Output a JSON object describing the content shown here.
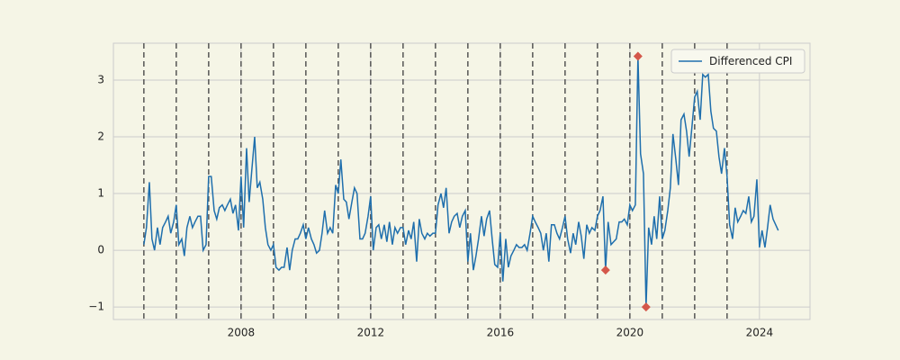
{
  "chart_data": {
    "type": "line",
    "xlim": [
      2004.06,
      2025.56
    ],
    "ylim": [
      -1.22,
      3.65
    ],
    "xticks": [
      2008,
      2012,
      2016,
      2020,
      2024
    ],
    "yticks": [
      {
        "value": -1,
        "label": "−1"
      },
      0,
      1,
      2,
      3
    ],
    "grid": true,
    "legend": "upper right",
    "vlines": [
      2005,
      2006,
      2007,
      2008,
      2009,
      2010,
      2011,
      2012,
      2013,
      2014,
      2015,
      2016,
      2017,
      2018,
      2019,
      2020,
      2021,
      2022,
      2023
    ],
    "series": [
      {
        "name": "Differenced CPI",
        "color": "#1f6fad",
        "x": [
          2005,
          2005.08,
          2005.17,
          2005.25,
          2005.33,
          2005.42,
          2005.5,
          2005.58,
          2005.67,
          2005.75,
          2005.83,
          2005.92,
          2006,
          2006.08,
          2006.17,
          2006.25,
          2006.33,
          2006.42,
          2006.5,
          2006.58,
          2006.67,
          2006.75,
          2006.83,
          2006.92,
          2007,
          2007.08,
          2007.17,
          2007.25,
          2007.33,
          2007.42,
          2007.5,
          2007.58,
          2007.67,
          2007.75,
          2007.83,
          2007.92,
          2008,
          2008.08,
          2008.17,
          2008.25,
          2008.33,
          2008.42,
          2008.5,
          2008.58,
          2008.67,
          2008.75,
          2008.83,
          2008.92,
          2009,
          2009.08,
          2009.17,
          2009.25,
          2009.33,
          2009.42,
          2009.5,
          2009.58,
          2009.67,
          2009.75,
          2009.83,
          2009.92,
          2010,
          2010.08,
          2010.17,
          2010.25,
          2010.33,
          2010.42,
          2010.5,
          2010.58,
          2010.67,
          2010.75,
          2010.83,
          2010.92,
          2011,
          2011.08,
          2011.17,
          2011.25,
          2011.33,
          2011.42,
          2011.5,
          2011.58,
          2011.67,
          2011.75,
          2011.83,
          2011.92,
          2012,
          2012.08,
          2012.17,
          2012.25,
          2012.33,
          2012.42,
          2012.5,
          2012.58,
          2012.67,
          2012.75,
          2012.83,
          2012.92,
          2013,
          2013.08,
          2013.17,
          2013.25,
          2013.33,
          2013.42,
          2013.5,
          2013.58,
          2013.67,
          2013.75,
          2013.83,
          2013.92,
          2014,
          2014.08,
          2014.17,
          2014.25,
          2014.33,
          2014.42,
          2014.5,
          2014.58,
          2014.67,
          2014.75,
          2014.83,
          2014.92,
          2015,
          2015.08,
          2015.17,
          2015.25,
          2015.33,
          2015.42,
          2015.5,
          2015.58,
          2015.67,
          2015.75,
          2015.83,
          2015.92,
          2016,
          2016.08,
          2016.17,
          2016.25,
          2016.33,
          2016.42,
          2016.5,
          2016.58,
          2016.67,
          2016.75,
          2016.83,
          2016.92,
          2017,
          2017.08,
          2017.17,
          2017.25,
          2017.33,
          2017.42,
          2017.5,
          2017.58,
          2017.67,
          2017.75,
          2017.83,
          2017.92,
          2018,
          2018.08,
          2018.17,
          2018.25,
          2018.33,
          2018.42,
          2018.5,
          2018.58,
          2018.67,
          2018.75,
          2018.83,
          2018.92,
          2019,
          2019.08,
          2019.17,
          2019.25,
          2019.33,
          2019.42,
          2019.5,
          2019.58,
          2019.67,
          2019.75,
          2019.83,
          2019.92,
          2020,
          2020.08,
          2020.17,
          2020.25,
          2020.33,
          2020.42,
          2020.5,
          2020.58,
          2020.67,
          2020.75,
          2020.83,
          2020.92,
          2021,
          2021.08,
          2021.17,
          2021.25,
          2021.33,
          2021.42,
          2021.5,
          2021.58,
          2021.67,
          2021.75,
          2021.83,
          2021.92,
          2022,
          2022.08,
          2022.17,
          2022.25,
          2022.33,
          2022.42,
          2022.5,
          2022.58,
          2022.67,
          2022.75,
          2022.83,
          2022.92,
          2023,
          2023.08,
          2023.17,
          2023.25,
          2023.33,
          2023.42,
          2023.5,
          2023.58,
          2023.67,
          2023.75,
          2023.83,
          2023.92,
          2024,
          2024.08,
          2024.17,
          2024.25,
          2024.33,
          2024.42,
          2024.5,
          2024.58
        ],
        "values": [
          0.1,
          0.4,
          1.2,
          0.2,
          0.0,
          0.4,
          0.1,
          0.4,
          0.5,
          0.6,
          0.3,
          0.5,
          0.8,
          0.1,
          0.2,
          -0.1,
          0.4,
          0.6,
          0.4,
          0.5,
          0.6,
          0.6,
          0.0,
          0.1,
          1.3,
          1.3,
          0.7,
          0.55,
          0.75,
          0.8,
          0.7,
          0.8,
          0.9,
          0.65,
          0.8,
          0.35,
          1.3,
          0.4,
          1.8,
          0.85,
          1.4,
          2.0,
          1.1,
          1.2,
          0.9,
          0.4,
          0.1,
          0.0,
          0.1,
          -0.3,
          -0.35,
          -0.3,
          -0.3,
          0.05,
          -0.35,
          0.0,
          0.2,
          0.2,
          0.3,
          0.45,
          0.2,
          0.4,
          0.2,
          0.1,
          -0.05,
          0.0,
          0.3,
          0.7,
          0.3,
          0.4,
          0.3,
          1.15,
          1.0,
          1.6,
          0.9,
          0.85,
          0.55,
          0.85,
          1.1,
          1.0,
          0.2,
          0.2,
          0.3,
          0.6,
          0.95,
          0.0,
          0.4,
          0.45,
          0.2,
          0.45,
          0.15,
          0.5,
          0.1,
          0.4,
          0.3,
          0.4,
          0.4,
          0.1,
          0.35,
          0.2,
          0.5,
          -0.2,
          0.55,
          0.3,
          0.2,
          0.3,
          0.25,
          0.3,
          0.3,
          0.8,
          1.0,
          0.75,
          1.1,
          0.3,
          0.5,
          0.6,
          0.65,
          0.4,
          0.6,
          0.7,
          -0.2,
          0.3,
          -0.35,
          -0.1,
          0.2,
          0.6,
          0.25,
          0.55,
          0.7,
          0.2,
          -0.25,
          -0.3,
          0.3,
          -0.55,
          0.2,
          -0.3,
          -0.1,
          0.0,
          0.1,
          0.05,
          0.05,
          0.1,
          0.0,
          0.3,
          0.6,
          0.5,
          0.4,
          0.3,
          0.0,
          0.3,
          -0.2,
          0.45,
          0.45,
          0.3,
          0.2,
          0.4,
          0.6,
          0.2,
          -0.05,
          0.3,
          0.1,
          0.5,
          0.25,
          -0.15,
          0.45,
          0.3,
          0.4,
          0.35,
          0.6,
          0.7,
          0.95,
          -0.35,
          0.5,
          0.1,
          0.15,
          0.2,
          0.5,
          0.5,
          0.55,
          0.45,
          0.8,
          0.7,
          0.8,
          3.42,
          1.7,
          1.35,
          -1.0,
          0.4,
          0.1,
          0.6,
          0.2,
          0.95,
          0.2,
          0.35,
          0.7,
          1.1,
          2.05,
          1.6,
          1.15,
          2.3,
          2.4,
          2.1,
          1.65,
          2.2,
          2.7,
          2.8,
          2.3,
          3.1,
          3.05,
          3.1,
          2.45,
          2.15,
          2.1,
          1.65,
          1.35,
          1.8,
          1.3,
          0.45,
          0.2,
          0.75,
          0.5,
          0.6,
          0.7,
          0.65,
          0.95,
          0.5,
          0.6,
          1.25,
          0.05,
          0.35,
          0.05,
          0.4,
          0.8,
          0.55,
          0.45,
          0.35
        ]
      }
    ],
    "markers": {
      "color": "#d4574a",
      "x": [
        2019.25,
        2020.25,
        2020.5
      ],
      "values": [
        -0.35,
        3.42,
        -1.0
      ]
    }
  }
}
